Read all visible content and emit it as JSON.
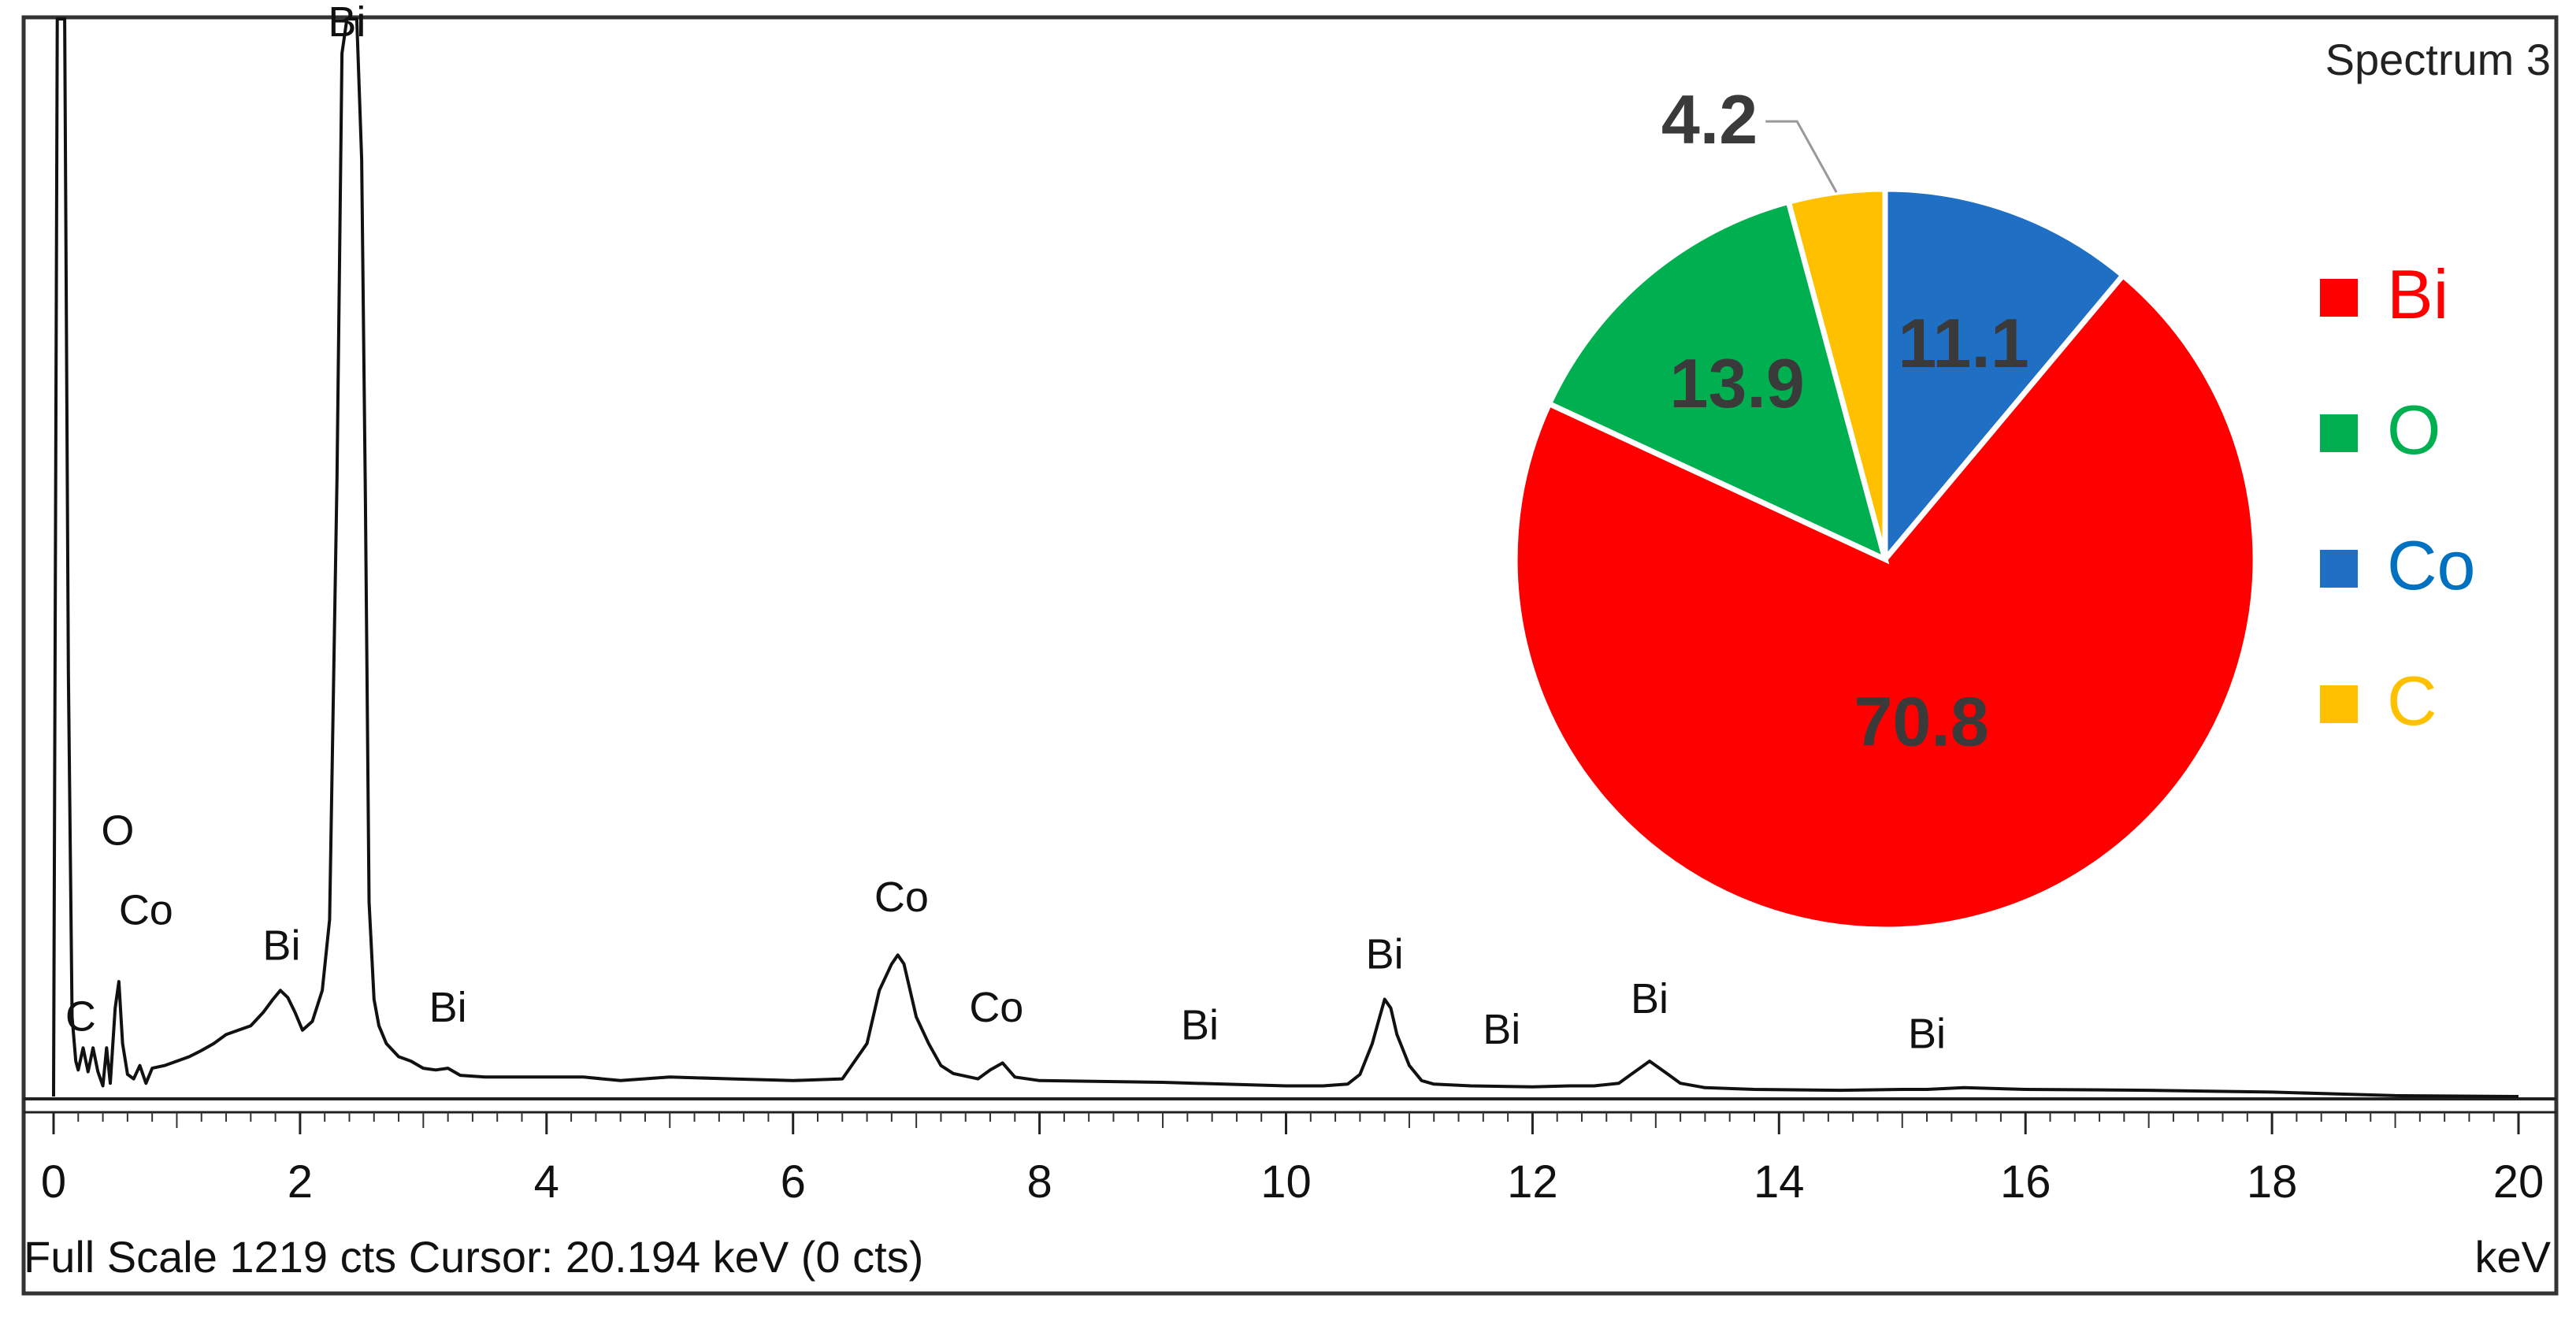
{
  "spectrum": {
    "title": "Spectrum 3",
    "footer_left": "Full Scale 1219 cts  Cursor: 20.194 keV (0 cts)",
    "unit": "keV"
  },
  "chart_data": [
    {
      "type": "line",
      "title": "Spectrum 3",
      "xlabel": "keV",
      "ylabel": "",
      "xlim": [
        0,
        20
      ],
      "ylim": [
        0,
        1219
      ],
      "x_ticks": [
        "0",
        "2",
        "4",
        "6",
        "8",
        "10",
        "12",
        "14",
        "16",
        "18",
        "20"
      ],
      "x": [
        0.0,
        0.03,
        0.05,
        0.07,
        0.09,
        0.12,
        0.15,
        0.18,
        0.2,
        0.24,
        0.28,
        0.32,
        0.36,
        0.4,
        0.43,
        0.46,
        0.5,
        0.53,
        0.56,
        0.6,
        0.65,
        0.7,
        0.75,
        0.8,
        0.9,
        1.0,
        1.1,
        1.2,
        1.3,
        1.4,
        1.5,
        1.6,
        1.7,
        1.78,
        1.84,
        1.9,
        1.96,
        2.02,
        2.1,
        2.18,
        2.24,
        2.3,
        2.34,
        2.38,
        2.41,
        2.44,
        2.46,
        2.5,
        2.53,
        2.56,
        2.6,
        2.64,
        2.7,
        2.8,
        2.9,
        3.0,
        3.1,
        3.2,
        3.3,
        3.5,
        3.7,
        4.0,
        4.3,
        4.6,
        5.0,
        5.5,
        6.0,
        6.4,
        6.6,
        6.7,
        6.8,
        6.85,
        6.9,
        6.95,
        7.0,
        7.1,
        7.2,
        7.3,
        7.5,
        7.6,
        7.7,
        7.8,
        8.0,
        8.5,
        9.0,
        9.5,
        10.0,
        10.3,
        10.5,
        10.6,
        10.7,
        10.75,
        10.8,
        10.85,
        10.9,
        11.0,
        11.1,
        11.2,
        11.5,
        12.0,
        12.3,
        12.5,
        12.7,
        12.8,
        12.9,
        12.95,
        13.0,
        13.1,
        13.2,
        13.4,
        13.8,
        14.5,
        15.0,
        15.2,
        15.5,
        16.0,
        17.0,
        18.0,
        18.5,
        19.0,
        20.0
      ],
      "y": [
        0,
        1219,
        1219,
        1219,
        1219,
        480,
        90,
        40,
        30,
        55,
        28,
        55,
        28,
        12,
        55,
        15,
        100,
        130,
        60,
        25,
        20,
        35,
        15,
        32,
        35,
        40,
        45,
        52,
        60,
        70,
        75,
        80,
        95,
        110,
        120,
        112,
        95,
        75,
        85,
        120,
        200,
        700,
        1180,
        1219,
        1219,
        1219,
        1219,
        1060,
        680,
        220,
        110,
        80,
        60,
        45,
        40,
        32,
        30,
        32,
        24,
        22,
        22,
        22,
        22,
        18,
        22,
        20,
        18,
        20,
        60,
        120,
        150,
        160,
        150,
        120,
        90,
        60,
        35,
        26,
        20,
        30,
        38,
        22,
        18,
        17,
        16,
        14,
        12,
        12,
        14,
        25,
        60,
        85,
        110,
        100,
        70,
        35,
        18,
        14,
        12,
        11,
        12,
        12,
        15,
        25,
        35,
        40,
        35,
        25,
        15,
        10,
        8,
        7,
        8,
        8,
        10,
        8,
        7,
        5,
        3,
        1,
        0
      ],
      "peak_labels": [
        {
          "text": "O",
          "x": 0.52,
          "y": 265
        },
        {
          "text": "Co",
          "x": 0.75,
          "y": 175
        },
        {
          "text": "C",
          "x": 0.22,
          "y": 55
        },
        {
          "text": "Bi",
          "x": 1.85,
          "y": 135
        },
        {
          "text": "Bi",
          "x": 2.38,
          "y": 1180
        },
        {
          "text": "Bi",
          "x": 3.2,
          "y": 65
        },
        {
          "text": "Co",
          "x": 6.88,
          "y": 190
        },
        {
          "text": "Co",
          "x": 7.65,
          "y": 65
        },
        {
          "text": "Bi",
          "x": 9.3,
          "y": 45
        },
        {
          "text": "Bi",
          "x": 10.8,
          "y": 125
        },
        {
          "text": "Bi",
          "x": 11.75,
          "y": 40
        },
        {
          "text": "Bi",
          "x": 12.95,
          "y": 75
        },
        {
          "text": "Bi",
          "x": 15.2,
          "y": 35
        }
      ]
    },
    {
      "type": "pie",
      "title": "",
      "categories": [
        "Bi",
        "O",
        "Co",
        "C"
      ],
      "values": [
        70.8,
        13.9,
        11.1,
        4.2
      ],
      "colors": [
        "#ff0000",
        "#00b050",
        "#1f6fc5",
        "#ffc000"
      ],
      "legend_position": "right"
    }
  ],
  "colors": {
    "trace": "#111111",
    "frame": "#333333",
    "pie_edge": "#ffffff",
    "label_dark": "#3a3a3a",
    "legend_text_Bi": "#ff0000",
    "legend_text_O": "#00b050",
    "legend_text_Co": "#0070c0",
    "legend_text_C": "#ffc000"
  }
}
